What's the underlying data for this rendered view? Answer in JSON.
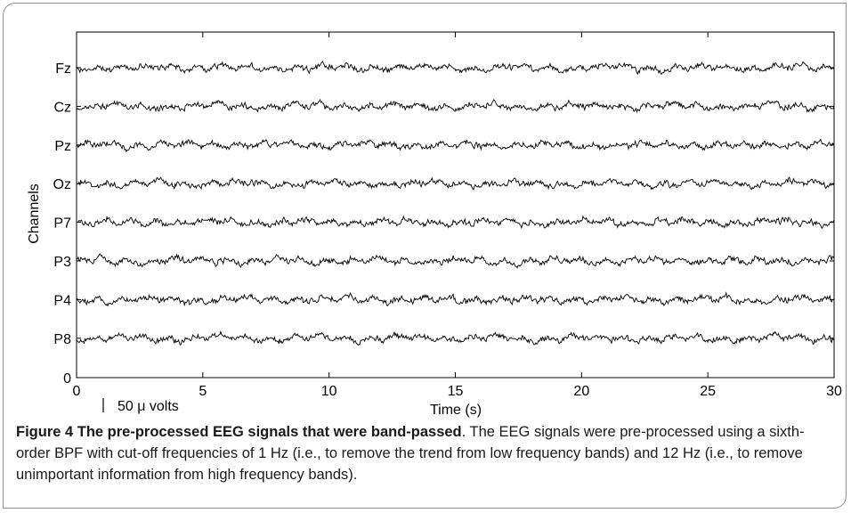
{
  "chart_data": {
    "type": "line",
    "title": "",
    "xlabel": "Time (s)",
    "ylabel": "Channels",
    "xlim": [
      0,
      30
    ],
    "x_ticks": [
      "0",
      "5",
      "10",
      "15",
      "20",
      "25",
      "30"
    ],
    "x_tick_values": [
      0,
      5,
      10,
      15,
      20,
      25,
      30
    ],
    "y_zero_label": "0",
    "channels": [
      "Fz",
      "Cz",
      "Pz",
      "Oz",
      "P7",
      "P3",
      "P4",
      "P8"
    ],
    "scale_bar_label": "50 μ volts",
    "grid": false,
    "legend": "none",
    "line_color": "#000000"
  },
  "caption": {
    "title": "Figure 4 The pre-processed EEG signals that were band-passed",
    "text": ". The EEG signals were pre-processed using a sixth-order BPF with cut-off frequencies of 1 Hz (i.e., to remove the trend from low frequency bands) and 12 Hz (i.e., to remove unimportant information from high frequency bands)."
  }
}
